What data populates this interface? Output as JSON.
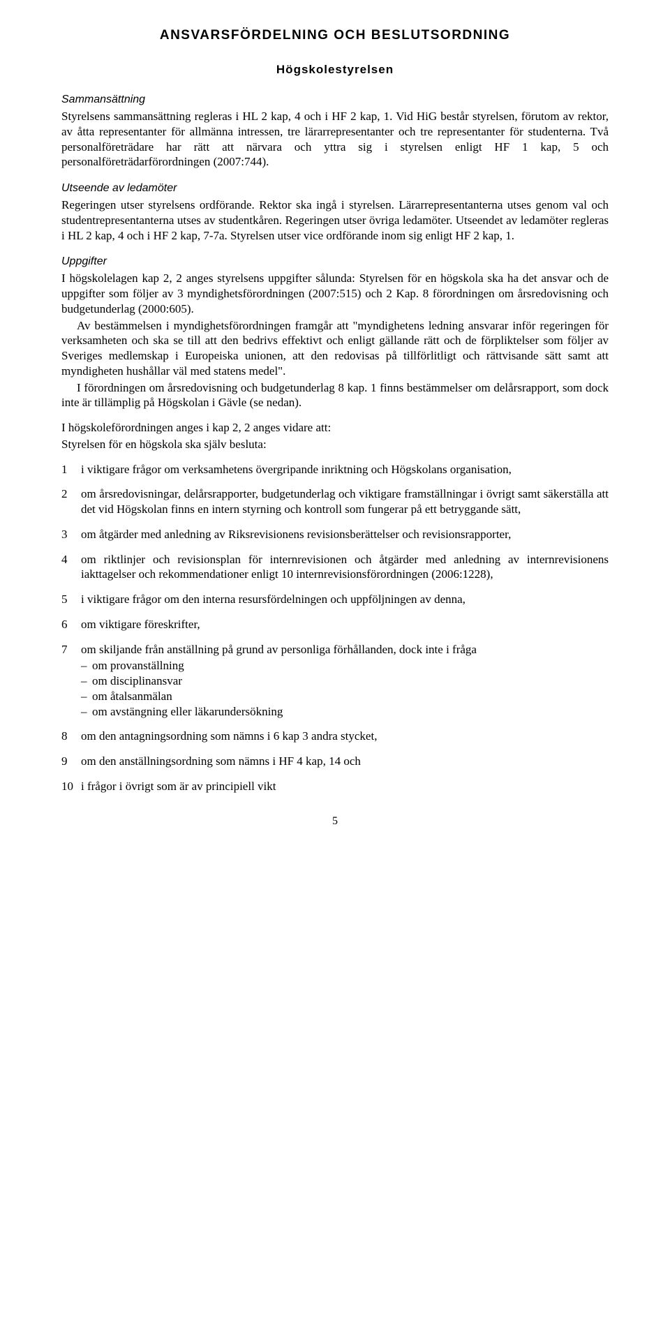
{
  "title": "ANSVARSFÖRDELNING OCH BESLUTSORDNING",
  "subtitle": "Högskolestyrelsen",
  "sections": {
    "sammansattning": {
      "heading": "Sammansättning",
      "body": "Styrelsens sammansättning regleras i HL 2 kap, 4 och i HF 2 kap, 1. Vid HiG består styrelsen, förutom av rektor, av åtta representanter för allmänna intressen, tre lärarrepresentanter och tre representanter för studenterna. Två personalföreträdare har rätt att närvara och yttra sig i styrelsen enligt HF 1 kap, 5 och personalföreträdarförordningen (2007:744)."
    },
    "utseende": {
      "heading": "Utseende av ledamöter",
      "body": "Regeringen utser styrelsens ordförande. Rektor ska ingå i styrelsen. Lärarrepresentanterna utses genom val och studentrepresentanterna utses av studentkåren. Regeringen utser övriga ledamöter. Utseendet av ledamöter regleras i HL 2 kap, 4 och i HF 2 kap, 7-7a. Styrelsen utser vice ordförande inom sig enligt HF 2 kap, 1."
    },
    "uppgifter": {
      "heading": "Uppgifter",
      "p1": "I högskolelagen kap 2, 2 anges styrelsens uppgifter sålunda: Styrelsen för en högskola ska ha det ansvar och de uppgifter som följer av 3 myndighetsförordningen (2007:515) och 2 Kap. 8 förordningen om årsredovisning och budgetunderlag (2000:605).",
      "p2": "Av bestämmelsen i myndighetsförordningen framgår att \"myndighetens ledning ansvarar inför regeringen för verksamheten och ska se till att den bedrivs effektivt och enligt gällande rätt och de förpliktelser som följer av Sveriges medlemskap i Europeiska unionen, att den redovisas på tillförlitligt och rättvisande sätt samt att myndigheten hushållar väl med statens medel\".",
      "p3": "I förordningen om årsredovisning och budgetunderlag 8 kap. 1 finns bestämmelser om delårsrapport, som dock inte är tillämplig på Högskolan i Gävle (se nedan).",
      "lead1": "I högskoleförordningen anges i kap 2, 2 anges vidare att:",
      "lead2": "Styrelsen för en högskola ska själv besluta:"
    }
  },
  "list": [
    "i viktigare frågor om verksamhetens övergripande inriktning och Högskolans organisation,",
    "om årsredovisningar, delårsrapporter, budgetunderlag och viktigare framställningar i övrigt samt säkerställa att det vid Högskolan finns en intern styrning och kontroll som fungerar på ett betryggande sätt,",
    "om åtgärder med anledning av Riksrevisionens revisionsberättelser och revisionsrapporter,",
    "om riktlinjer och revisionsplan för internrevisionen och åtgärder med anledning av internrevisionens iakttagelser och rekommendationer enligt 10 internrevisionsförordningen (2006:1228),",
    "i viktigare frågor om den interna resursfördelningen och uppföljningen av denna,",
    "om viktigare föreskrifter,",
    "om skiljande från anställning på grund av personliga förhållanden, dock inte i fråga",
    "om den antagningsordning som nämns i 6 kap 3 andra stycket,",
    "om den anställningsordning som nämns i HF 4 kap, 14 och",
    "i frågor i övrigt som är av principiell vikt"
  ],
  "sublist7": [
    "om provanställning",
    "om disciplinansvar",
    "om åtalsanmälan",
    "om avstängning eller läkarundersökning"
  ],
  "pageNumber": "5"
}
